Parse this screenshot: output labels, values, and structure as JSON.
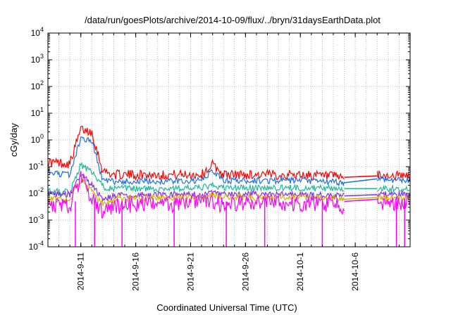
{
  "chart_data": {
    "type": "line",
    "title": "/data/run/goesPlots/archive/2014-10-09/flux/../bryn/31daysEarthData.plot",
    "xlabel": "Coordinated Universal Time (UTC)",
    "ylabel": "cGy/day",
    "yscale": "log",
    "ylim": [
      0.0001,
      10000
    ],
    "xlim": [
      "2014-09-08",
      "2014-10-11"
    ],
    "x_ticks": [
      "2014-9-11",
      "2014-9-16",
      "2014-9-21",
      "2014-9-26",
      "2014-10-1",
      "2014-10-6"
    ],
    "y_ticks": [
      {
        "base": "10",
        "exp": "4"
      },
      {
        "base": "10",
        "exp": "3"
      },
      {
        "base": "10",
        "exp": "2"
      },
      {
        "base": "10",
        "exp": "1"
      },
      {
        "base": "10",
        "exp": "0"
      },
      {
        "base": "10",
        "exp": "-1"
      },
      {
        "base": "10",
        "exp": "-2"
      },
      {
        "base": "10",
        "exp": "-3"
      },
      {
        "base": "10",
        "exp": "-4"
      }
    ],
    "grid": true,
    "legend": "none",
    "data_gap": [
      "2014-10-05",
      "2014-10-08"
    ],
    "series": [
      {
        "color": "#ff0000",
        "x": [
          "2014-09-08",
          "2014-09-10",
          "2014-09-11",
          "2014-09-12",
          "2014-09-13",
          "2014-09-14",
          "2014-09-18",
          "2014-09-22",
          "2014-09-23",
          "2014-09-24",
          "2014-09-28",
          "2014-10-01",
          "2014-10-05",
          "2014-10-08",
          "2014-10-11"
        ],
        "values": [
          0.15,
          0.13,
          2.5,
          2.0,
          0.07,
          0.05,
          0.05,
          0.05,
          0.12,
          0.05,
          0.05,
          0.05,
          0.04,
          0.045,
          0.045
        ]
      },
      {
        "color": "#1f6fe8",
        "x": [
          "2014-09-08",
          "2014-09-10",
          "2014-09-11",
          "2014-09-12",
          "2014-09-13",
          "2014-09-14",
          "2014-09-18",
          "2014-09-22",
          "2014-09-23",
          "2014-09-24",
          "2014-09-28",
          "2014-10-01",
          "2014-10-05",
          "2014-10-08",
          "2014-10-11"
        ],
        "values": [
          0.06,
          0.05,
          1.2,
          0.9,
          0.03,
          0.028,
          0.028,
          0.03,
          0.07,
          0.03,
          0.03,
          0.03,
          0.025,
          0.035,
          0.03
        ]
      },
      {
        "color": "#1fb89a",
        "x": [
          "2014-09-08",
          "2014-09-10",
          "2014-09-11",
          "2014-09-12",
          "2014-09-13",
          "2014-09-14",
          "2014-09-18",
          "2014-09-22",
          "2014-09-23",
          "2014-09-24",
          "2014-09-28",
          "2014-10-01",
          "2014-10-05",
          "2014-10-08",
          "2014-10-11"
        ],
        "values": [
          0.012,
          0.011,
          0.12,
          0.06,
          0.018,
          0.015,
          0.015,
          0.016,
          0.02,
          0.016,
          0.016,
          0.016,
          0.015,
          0.015,
          0.015
        ]
      },
      {
        "color": "#8a2be2",
        "x": [
          "2014-09-08",
          "2014-09-10",
          "2014-09-11",
          "2014-09-12",
          "2014-09-13",
          "2014-09-14",
          "2014-09-18",
          "2014-09-22",
          "2014-09-23",
          "2014-09-24",
          "2014-09-28",
          "2014-10-01",
          "2014-10-05",
          "2014-10-08",
          "2014-10-11"
        ],
        "values": [
          0.009,
          0.009,
          0.05,
          0.02,
          0.006,
          0.008,
          0.009,
          0.009,
          0.01,
          0.009,
          0.009,
          0.009,
          0.008,
          0.009,
          0.009
        ]
      },
      {
        "color": "#d4b000",
        "x": [
          "2014-09-08",
          "2014-09-10",
          "2014-09-11",
          "2014-09-12",
          "2014-09-13",
          "2014-09-14",
          "2014-09-18",
          "2014-09-22",
          "2014-09-23",
          "2014-09-24",
          "2014-09-28",
          "2014-10-01",
          "2014-10-05",
          "2014-10-08",
          "2014-10-11"
        ],
        "values": [
          0.006,
          0.006,
          0.03,
          0.012,
          0.004,
          0.006,
          0.007,
          0.007,
          0.008,
          0.007,
          0.007,
          0.007,
          0.006,
          0.007,
          0.007
        ]
      },
      {
        "color": "#ff00ff",
        "x": [
          "2014-09-08",
          "2014-09-10",
          "2014-09-11",
          "2014-09-12",
          "2014-09-13",
          "2014-09-14",
          "2014-09-18",
          "2014-09-22",
          "2014-09-23",
          "2014-09-24",
          "2014-09-28",
          "2014-10-01",
          "2014-10-05",
          "2014-10-08",
          "2014-10-11"
        ],
        "values": [
          0.005,
          0.005,
          0.06,
          0.01,
          0.003,
          0.005,
          0.006,
          0.006,
          0.007,
          0.006,
          0.006,
          0.006,
          0.005,
          0.006,
          0.006
        ]
      }
    ],
    "dips_magenta": [
      "2014-09-10 12:00",
      "2014-09-12 06:00",
      "2014-09-14 18:00",
      "2014-09-19 12:00",
      "2014-09-24 06:00",
      "2014-09-27 18:00",
      "2014-10-03 00:00",
      "2014-10-09 18:00",
      "2014-10-10 12:00"
    ]
  }
}
